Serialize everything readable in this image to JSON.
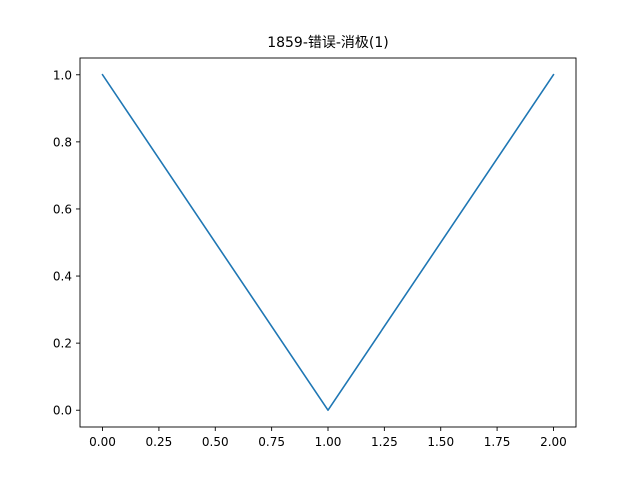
{
  "chart_data": {
    "type": "line",
    "title": "1859-错误-消极(1)",
    "xlabel": "",
    "ylabel": "",
    "x": [
      0.0,
      1.0,
      2.0
    ],
    "series": [
      {
        "values": [
          1.0,
          0.0,
          1.0
        ],
        "color": "#1f77b4"
      }
    ],
    "xlim": [
      -0.1,
      2.1
    ],
    "ylim": [
      -0.05,
      1.05
    ],
    "xticks": [
      0.0,
      0.25,
      0.5,
      0.75,
      1.0,
      1.25,
      1.5,
      1.75,
      2.0
    ],
    "xtick_labels": [
      "0.00",
      "0.25",
      "0.50",
      "0.75",
      "1.00",
      "1.25",
      "1.50",
      "1.75",
      "2.00"
    ],
    "yticks": [
      0.0,
      0.2,
      0.4,
      0.6,
      0.8,
      1.0
    ],
    "ytick_labels": [
      "0.0",
      "0.2",
      "0.4",
      "0.6",
      "0.8",
      "1.0"
    ],
    "grid": false,
    "legend": false
  }
}
